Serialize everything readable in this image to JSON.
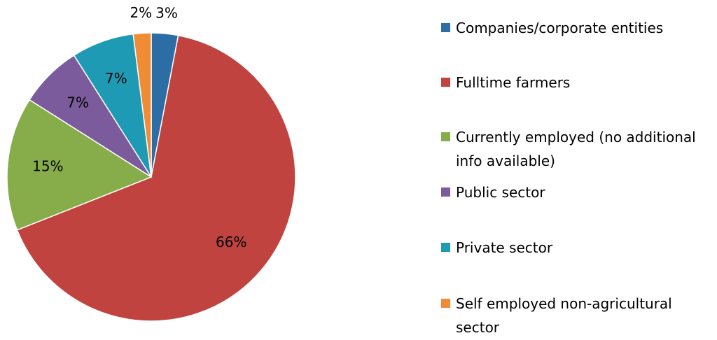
{
  "chart_data": {
    "type": "pie",
    "categories": [
      "Companies/corporate entities",
      "Fulltime farmers",
      "Currently employed (no additional info available)",
      "Public sector",
      "Private sector",
      "Self employed non-agricultural sector"
    ],
    "values": [
      3,
      66,
      15,
      7,
      7,
      2
    ],
    "value_labels": [
      "3%",
      "66%",
      "15%",
      "7%",
      "7%",
      "2%"
    ],
    "colors": [
      "#2c6da6",
      "#c0433f",
      "#86ad4a",
      "#7b5b9b",
      "#1f9ab4",
      "#f08b36"
    ],
    "legend": "right"
  }
}
